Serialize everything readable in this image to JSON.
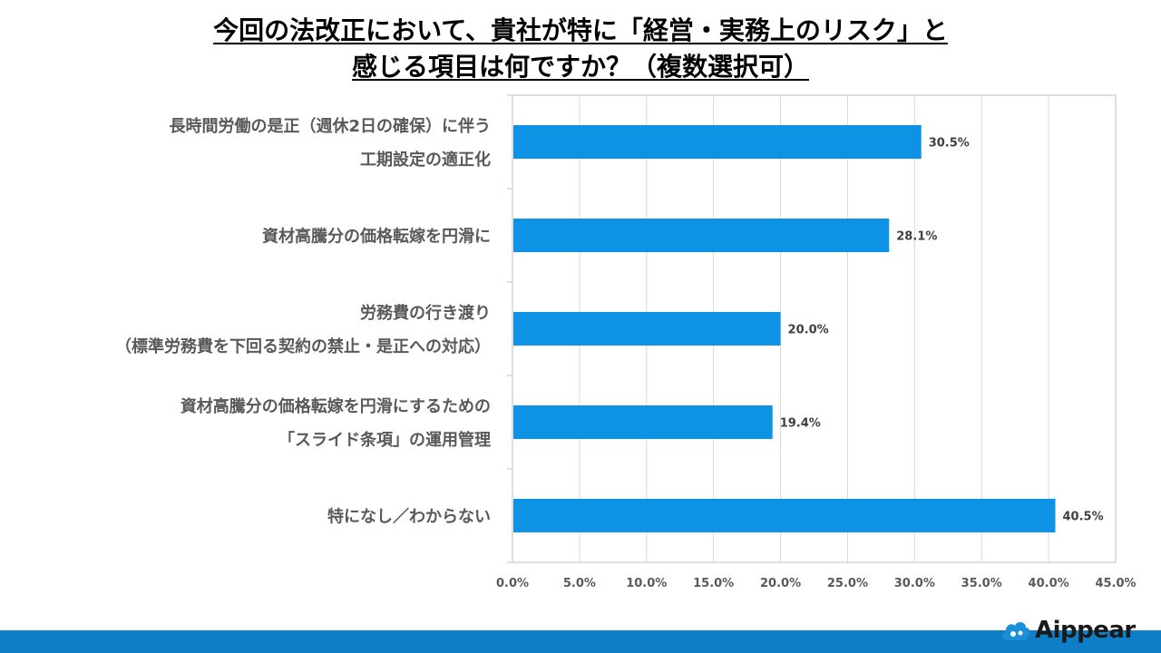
{
  "title": {
    "line1": "今回の法改正において、貴社が特に「経営・実務上のリスク」と",
    "line2": "感じる項目は何ですか？（複数選択可）"
  },
  "brand": {
    "name": "Aippear"
  },
  "colors": {
    "bar": "#0e93e4",
    "band": "#0e7fc7",
    "grid": "#d9d9d9",
    "axis": "#bfbfbf"
  },
  "chart_data": {
    "type": "bar",
    "orientation": "horizontal",
    "categories": [
      [
        "長時間労働の是正（週休2日の確保）に伴う",
        "工期設定の適正化"
      ],
      [
        "資材高騰分の価格転嫁を円滑に"
      ],
      [
        "労務費の行き渡り",
        "（標準労務費を下回る契約の禁止・是正への対応）"
      ],
      [
        "資材高騰分の価格転嫁を円滑にするための",
        "「スライド条項」の運用管理"
      ],
      [
        "特になし／わからない"
      ]
    ],
    "values": [
      30.5,
      28.1,
      20.0,
      19.4,
      40.5
    ],
    "data_labels": [
      "30.5%",
      "28.1%",
      "20.0%",
      "19.4%",
      "40.5%"
    ],
    "xlim": [
      0,
      45
    ],
    "xticks": [
      0,
      5,
      10,
      15,
      20,
      25,
      30,
      35,
      40,
      45
    ],
    "xtick_labels": [
      "0.0%",
      "5.0%",
      "10.0%",
      "15.0%",
      "20.0%",
      "25.0%",
      "30.0%",
      "35.0%",
      "40.0%",
      "45.0%"
    ],
    "grid": true,
    "legend": "none"
  }
}
